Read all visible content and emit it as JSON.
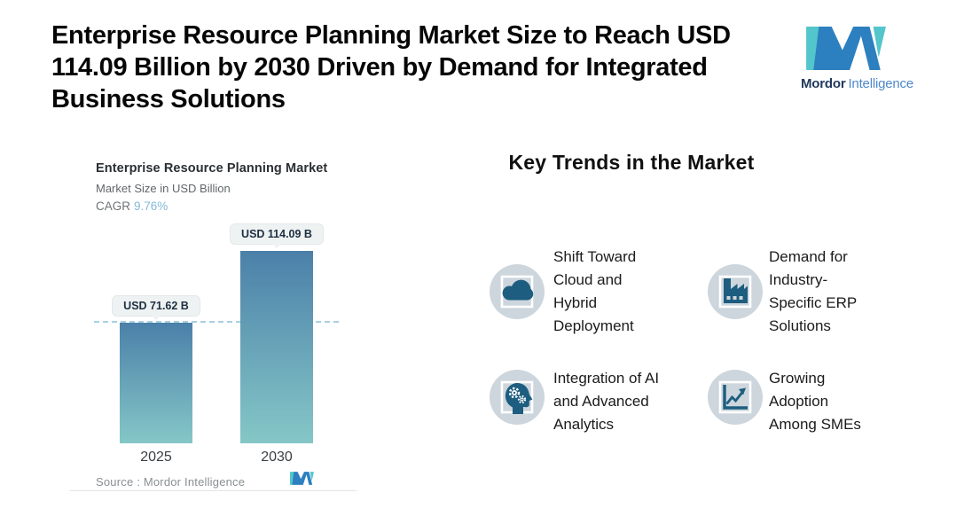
{
  "page": {
    "title_lines": [
      "Enterprise Resource Planning Market Size to Reach USD",
      "114.09 Billion by 2030 Driven by Demand for Integrated",
      "Business Solutions"
    ]
  },
  "brand": {
    "name_primary": "Mordor",
    "name_secondary": "Intelligence",
    "teal": "#52c6cb",
    "blue": "#2d80bf"
  },
  "chart": {
    "title": "Enterprise Resource Planning Market",
    "subtitle": "Market Size in USD Billion",
    "cagr_label": "CAGR",
    "cagr_value": "9.76%",
    "source": "Source :  Mordor Intelligence"
  },
  "chart_data": {
    "type": "bar",
    "title": "Enterprise Resource Planning Market",
    "ylabel": "Market Size in USD Billion",
    "categories": [
      "2025",
      "2030"
    ],
    "values": [
      71.62,
      114.09
    ],
    "value_labels": [
      "USD 71.62 B",
      "USD 114.09 B"
    ],
    "cagr_percent": 9.76,
    "ylim": [
      0,
      125
    ],
    "grid": false,
    "reference_line": 71.62,
    "reference_line_color": "#a9cfe2",
    "bar_gradient": [
      "#4b80a9",
      "#85c7c7"
    ],
    "source": "Source :  Mordor Intelligence"
  },
  "trends": {
    "heading": "Key Trends in the Market",
    "items": [
      {
        "icon": "cloud-icon",
        "label_lines": [
          "Shift Toward",
          "Cloud and",
          "Hybrid",
          "Deployment"
        ]
      },
      {
        "icon": "factory-icon",
        "label_lines": [
          "Demand for",
          "Industry-",
          "Specific ERP",
          "Solutions"
        ]
      },
      {
        "icon": "ai-head-icon",
        "label_lines": [
          "Integration of AI",
          "and Advanced",
          "Analytics"
        ]
      },
      {
        "icon": "growth-chart-icon",
        "label_lines": [
          "Growing",
          "Adoption",
          "Among SMEs"
        ]
      }
    ]
  },
  "icon_style": {
    "circle_bg": "#cdd6dd",
    "glyph_color": "#1d5d7f",
    "frame_color": "#ffffff"
  }
}
